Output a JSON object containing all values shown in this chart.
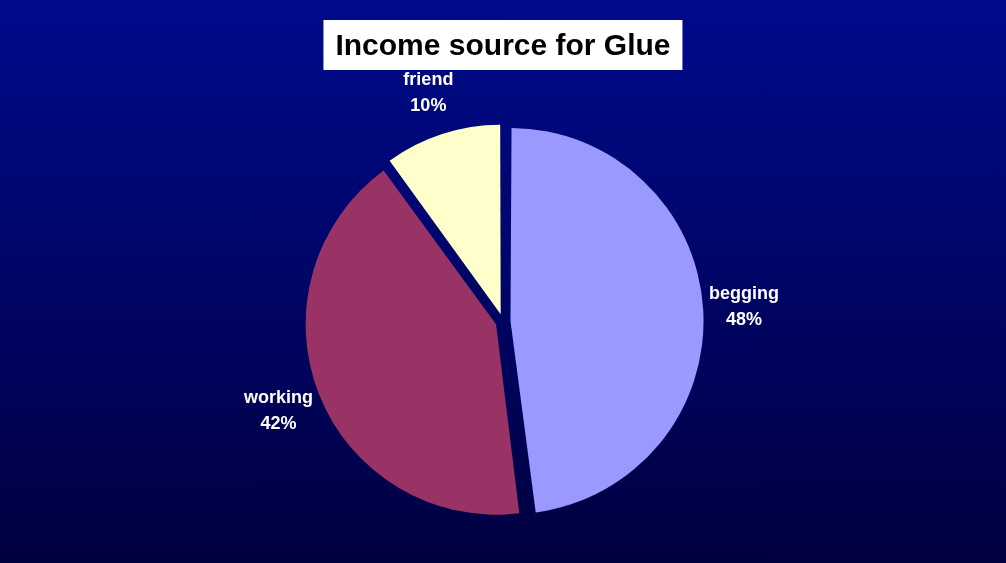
{
  "chart_data": {
    "type": "pie",
    "title": "Income source for Glue",
    "categories": [
      "begging",
      "working",
      "friend"
    ],
    "values": [
      48,
      42,
      10
    ],
    "colors": [
      "#9999ff",
      "#993366",
      "#ffffcc"
    ],
    "value_labels": [
      "48%",
      "42%",
      "10%"
    ],
    "legend": false
  }
}
